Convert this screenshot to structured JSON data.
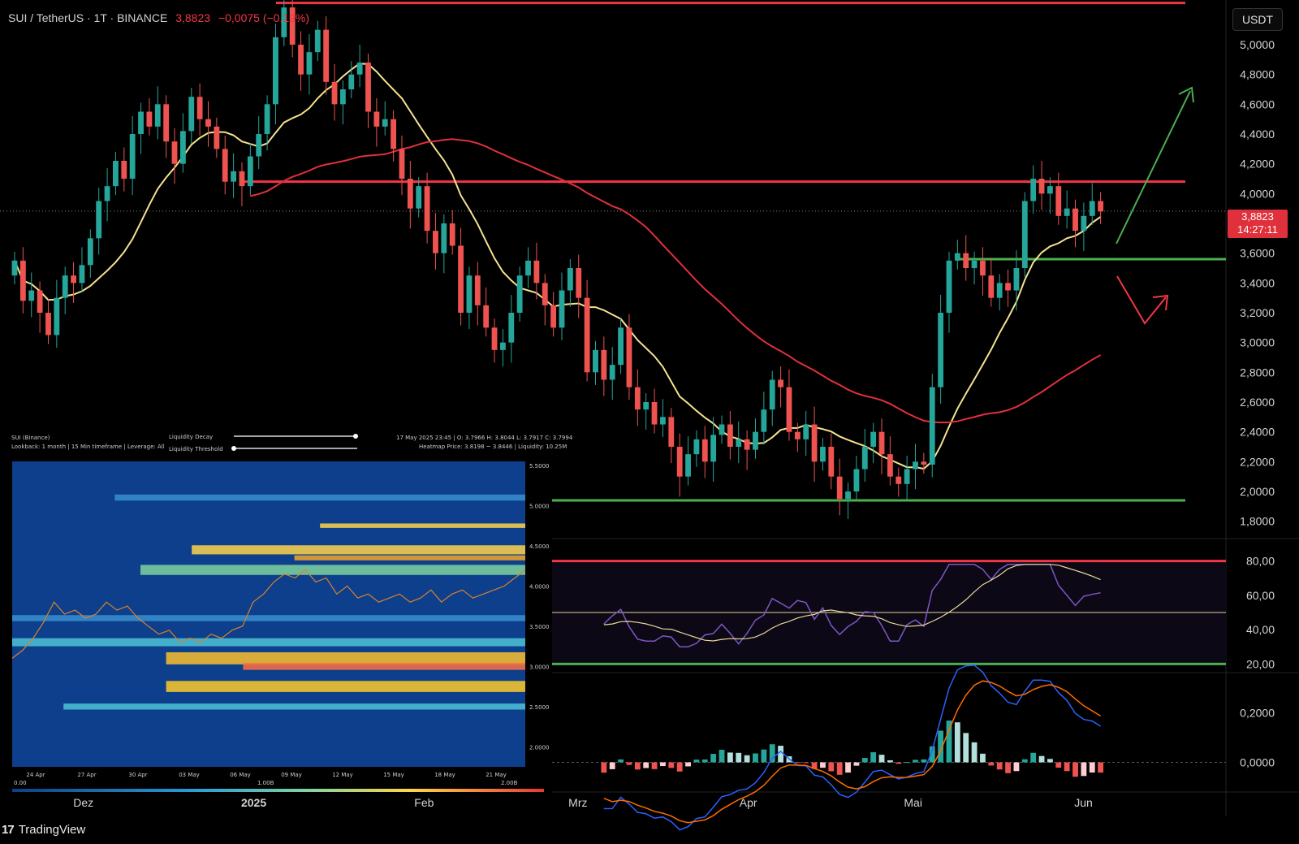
{
  "header": {
    "symbol": "SUI / TetherUS · 1T · BINANCE",
    "price": "3,8823",
    "change": "−0,0075 (−0,19%)"
  },
  "currency_unit": "USDT",
  "price_tag": {
    "price": "3,8823",
    "countdown": "14:27:11"
  },
  "brand": "TradingView",
  "colors": {
    "up": "#26a69a",
    "down": "#ef5350",
    "resistance": "#f23645",
    "support": "#4caf50",
    "ma50": "#f5e38f",
    "ma200": "#e0303c",
    "rsi": "#7e57c2",
    "macd": "#2962ff",
    "signal": "#ff6d00"
  },
  "chart_data": [
    {
      "type": "candlestick",
      "x_ticks": [
        "Dez",
        "2025",
        "Feb",
        "Mrz",
        "Apr",
        "Mai",
        "Jun"
      ],
      "y_ticks": [
        "5,0000",
        "4,8000",
        "4,6000",
        "4,4000",
        "4,2000",
        "4,0000",
        "3,6000",
        "3,4000",
        "3,2000",
        "3,0000",
        "2,8000",
        "2,6000",
        "2,4000",
        "2,2000",
        "2,0000",
        "1,8000"
      ],
      "ylim": [
        1.7,
        5.3
      ],
      "start_date": "2024-11-17",
      "candles_close": [
        3.55,
        3.28,
        3.35,
        3.2,
        3.05,
        3.3,
        3.45,
        3.4,
        3.52,
        3.7,
        3.95,
        4.05,
        4.22,
        4.1,
        4.4,
        4.55,
        4.45,
        4.6,
        4.35,
        4.2,
        4.42,
        4.65,
        4.5,
        4.45,
        4.3,
        4.08,
        4.15,
        4.05,
        4.25,
        4.4,
        4.6,
        5.05,
        5.25,
        5.0,
        4.8,
        4.95,
        5.1,
        4.75,
        4.6,
        4.7,
        4.8,
        4.88,
        4.55,
        4.45,
        4.5,
        4.3,
        4.1,
        3.9,
        4.05,
        3.75,
        3.6,
        3.8,
        3.65,
        3.2,
        3.45,
        3.25,
        3.1,
        2.95,
        3.0,
        3.2,
        3.45,
        3.55,
        3.4,
        3.25,
        3.1,
        3.35,
        3.5,
        3.3,
        2.8,
        2.95,
        2.75,
        2.85,
        3.1,
        2.7,
        2.55,
        2.6,
        2.45,
        2.5,
        2.3,
        2.1,
        2.25,
        2.35,
        2.2,
        2.38,
        2.45,
        2.3,
        2.35,
        2.28,
        2.4,
        2.55,
        2.75,
        2.7,
        2.4,
        2.35,
        2.45,
        2.2,
        2.3,
        2.1,
        1.95,
        2.0,
        2.15,
        2.3,
        2.4,
        2.25,
        2.1,
        2.05,
        2.15,
        2.2,
        2.18,
        2.7,
        3.2,
        3.55,
        3.6,
        3.5,
        3.55,
        3.45,
        3.3,
        3.4,
        3.35,
        3.5,
        3.95,
        4.1,
        4.0,
        4.05,
        3.85,
        3.9,
        3.75,
        3.85,
        3.95,
        3.88
      ]
    },
    {
      "type": "line",
      "name": "RSI",
      "y_ticks": [
        "80,00",
        "60,00",
        "40,00",
        "20,00"
      ],
      "ylim": [
        15,
        85
      ],
      "levels": [
        80,
        50,
        20
      ]
    },
    {
      "type": "bar",
      "name": "MACD",
      "y_ticks": [
        "0,2000",
        "0,0000"
      ],
      "ylim": [
        -0.12,
        0.34
      ]
    },
    {
      "type": "heatmap",
      "header_left": [
        "SUI (Binance)",
        "Lookback: 1 month | 15 Min timeframe | Leverage: All"
      ],
      "slider_labels": [
        "Liquidity Decay",
        "Liquidity Threshold"
      ],
      "header_right": [
        "17 May 2025 23:45 | O: 3.7966 H: 3.8044 L: 3.7917 C: 3.7994",
        "Heatmap Price: 3.8198 ~ 3.8446 | Liquidity: 10.25M"
      ],
      "x_ticks": [
        "24 Apr",
        "27 Apr",
        "30 Apr",
        "03 May",
        "06 May",
        "09 May",
        "12 May",
        "15 May",
        "18 May",
        "21 May"
      ],
      "y_ticks": [
        "5.5000",
        "5.0000",
        "4.5000",
        "4.0000",
        "3.5000",
        "3.0000",
        "2.5000",
        "2.0000"
      ],
      "ylim": [
        1.75,
        5.55
      ],
      "colorbar_ticks": [
        "0.00",
        "1.00B",
        "2.00B"
      ],
      "price_path": [
        3.1,
        3.2,
        3.35,
        3.55,
        3.8,
        3.65,
        3.7,
        3.6,
        3.65,
        3.8,
        3.7,
        3.75,
        3.6,
        3.5,
        3.4,
        3.45,
        3.3,
        3.35,
        3.3,
        3.4,
        3.35,
        3.45,
        3.5,
        3.8,
        3.9,
        4.05,
        4.15,
        4.1,
        4.2,
        4.05,
        4.1,
        3.9,
        4.0,
        3.85,
        3.9,
        3.8,
        3.85,
        3.9,
        3.8,
        3.85,
        3.95,
        3.8,
        3.9,
        3.95,
        3.85,
        3.9,
        3.95,
        4.0,
        4.1,
        4.2
      ]
    }
  ]
}
